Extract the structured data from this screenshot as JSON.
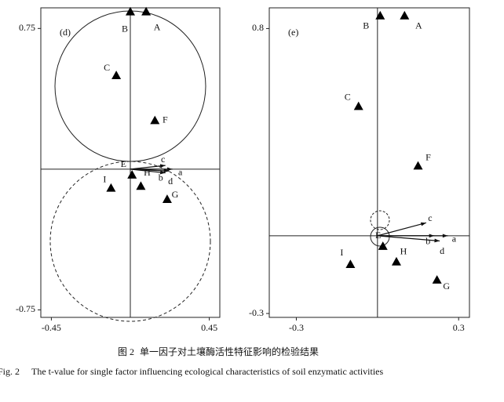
{
  "chart_data": [
    {
      "type": "scatter",
      "panel_label": "(d)",
      "xlim": [
        -0.51,
        0.51
      ],
      "ylim": [
        -0.79,
        0.86
      ],
      "xticks": [
        -0.45,
        0.45
      ],
      "yticks": [
        -0.75,
        0.75
      ],
      "labels": [
        "A",
        "B",
        "C",
        "E",
        "F",
        "G",
        "H",
        "I"
      ],
      "x": [
        0.09,
        0.0,
        -0.08,
        0.01,
        0.14,
        0.21,
        0.06,
        -0.11
      ],
      "y": [
        0.84,
        0.84,
        0.5,
        -0.03,
        0.26,
        -0.16,
        -0.09,
        -0.1
      ],
      "arrows": {
        "labels": [
          "a",
          "b",
          "c",
          "d"
        ],
        "x": [
          0.24,
          0.2,
          0.2,
          0.22
        ],
        "y": [
          0.0,
          -0.02,
          0.02,
          -0.01
        ]
      }
    },
    {
      "type": "scatter",
      "panel_label": "(e)",
      "xlim": [
        -0.4,
        0.34
      ],
      "ylim": [
        -0.315,
        0.88
      ],
      "xticks": [
        -0.3,
        0.3
      ],
      "yticks": [
        -0.3,
        0.8
      ],
      "labels": [
        "A",
        "B",
        "C",
        "E",
        "F",
        "G",
        "H",
        "I"
      ],
      "x": [
        0.1,
        0.01,
        -0.07,
        0.02,
        0.15,
        0.22,
        0.07,
        -0.1
      ],
      "y": [
        0.85,
        0.85,
        0.5,
        -0.04,
        0.27,
        -0.17,
        -0.1,
        -0.11
      ],
      "arrows": {
        "labels": [
          "a",
          "b",
          "c",
          "d"
        ],
        "x": [
          0.26,
          0.21,
          0.18,
          0.23
        ],
        "y": [
          0.0,
          0.0,
          0.05,
          -0.02
        ]
      }
    }
  ],
  "caption": {
    "zh_label": "图 2",
    "zh_text": "单一因子对土壤酶活性特征影响的检验结果",
    "en_label": "Fig. 2",
    "en_text": "The t-value for single factor influencing ecological characteristics of soil enzymatic activities"
  }
}
